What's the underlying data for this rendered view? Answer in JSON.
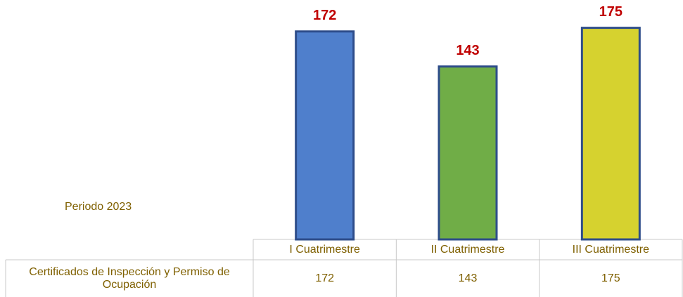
{
  "chart_data": {
    "type": "bar",
    "annotation": "Periodo 2023",
    "categories": [
      "I Cuatrimestre",
      "II Cuatrimestre",
      "III Cuatrimestre"
    ],
    "series": [
      {
        "name": "Certificados de Inspección y Permiso de Ocupación",
        "values": [
          172,
          143,
          175
        ],
        "colors": [
          "#4f7fcc",
          "#70ad47",
          "#d6d22f"
        ]
      }
    ],
    "ylim": [
      0,
      198
    ]
  }
}
